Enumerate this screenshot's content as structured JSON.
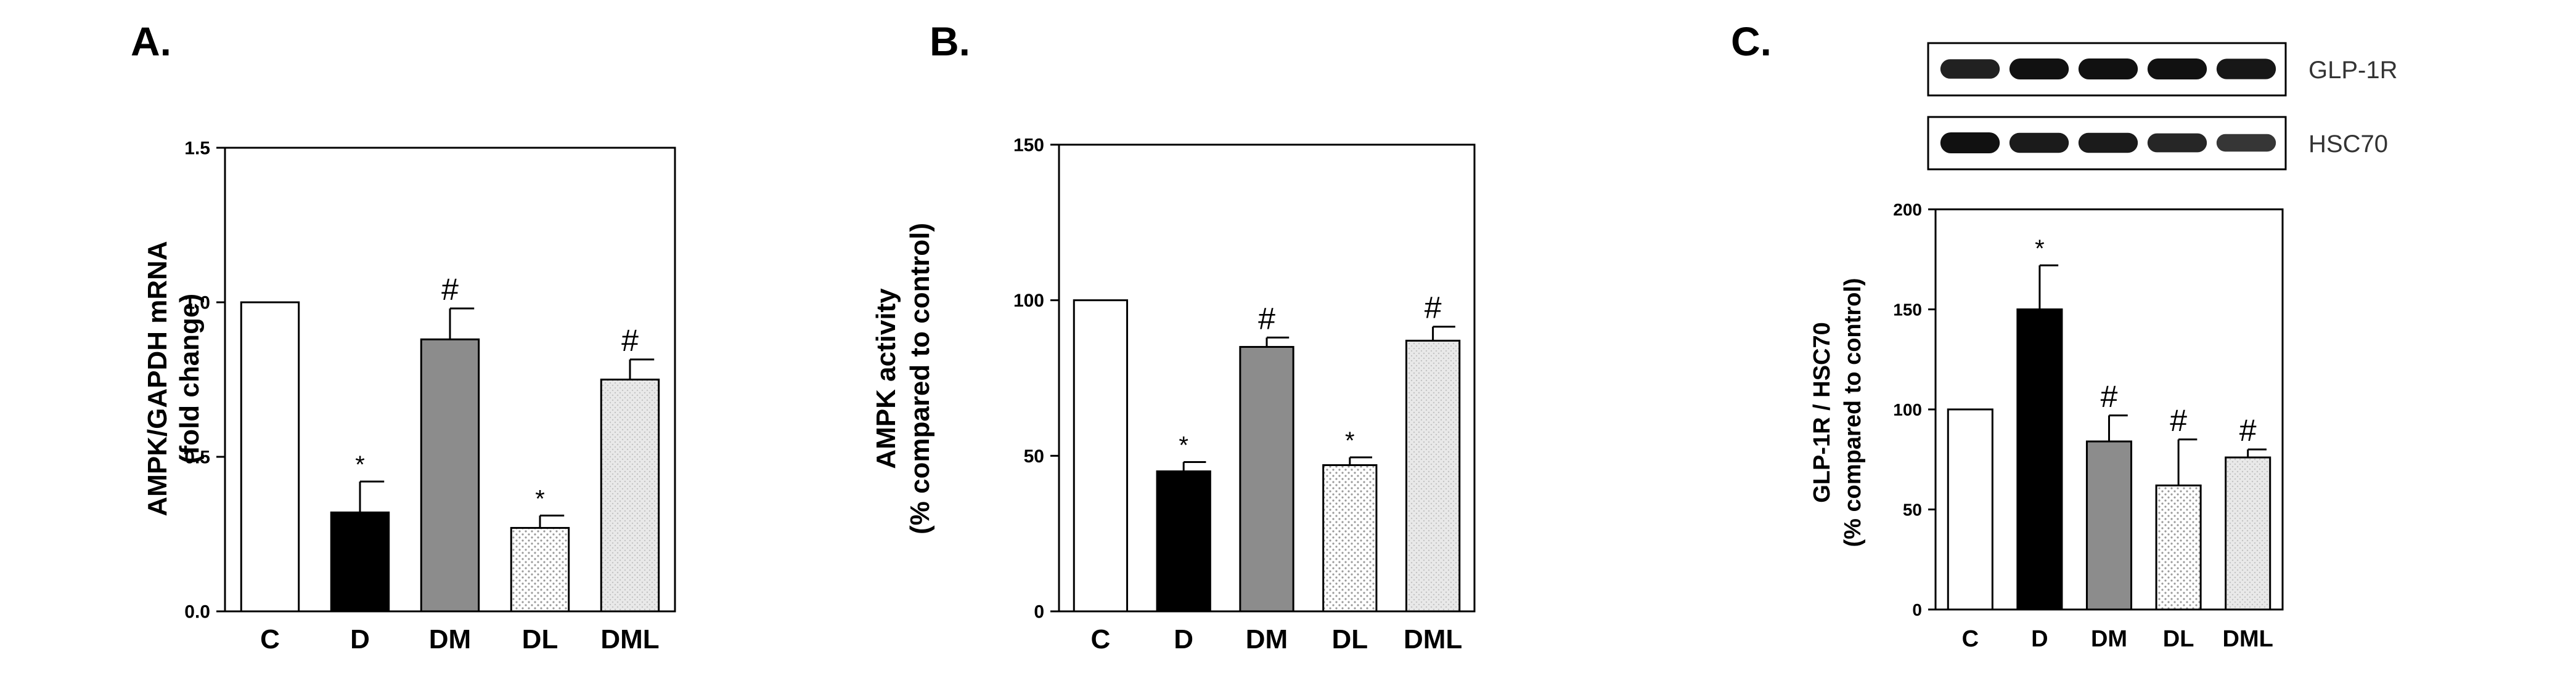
{
  "panels": [
    {
      "letter": "A."
    },
    {
      "letter": "B."
    },
    {
      "letter": "C."
    }
  ],
  "blot": {
    "rows": [
      {
        "label": "GLP-1R",
        "band_intensity": [
          0.85,
          1.0,
          1.0,
          1.0,
          0.95
        ]
      },
      {
        "label": "HSC70",
        "band_intensity": [
          1.0,
          0.9,
          0.9,
          0.8,
          0.65
        ]
      }
    ]
  },
  "chart_data": [
    {
      "type": "bar",
      "title": "",
      "xlabel": "",
      "ylabel": [
        "AMPK/GAPDH mRNA",
        "(fold change)"
      ],
      "categories": [
        "C",
        "D",
        "DM",
        "DL",
        "DML"
      ],
      "values": [
        1.0,
        0.32,
        0.88,
        0.27,
        0.75
      ],
      "errors": [
        0,
        0.1,
        0.1,
        0.04,
        0.065
      ],
      "annotations": [
        "",
        "*",
        "#",
        "*",
        "#"
      ],
      "bar_styles": [
        "white",
        "black",
        "gray",
        "dotted",
        "light-dotted"
      ],
      "ylim": [
        0,
        1.5
      ],
      "yticks": [
        "0.0",
        "0.5",
        "1.0",
        "1.5"
      ],
      "grid": false,
      "legend": "none"
    },
    {
      "type": "bar",
      "title": "",
      "xlabel": "",
      "ylabel": [
        "AMPK activity",
        "(% compared to control)"
      ],
      "categories": [
        "C",
        "D",
        "DM",
        "DL",
        "DML"
      ],
      "values": [
        100,
        45,
        85,
        47,
        87
      ],
      "errors": [
        0,
        3,
        3,
        2.5,
        4.5
      ],
      "annotations": [
        "",
        "*",
        "#",
        "*",
        "#"
      ],
      "bar_styles": [
        "white",
        "black",
        "gray",
        "dotted",
        "light-dotted"
      ],
      "ylim": [
        0,
        150
      ],
      "yticks": [
        "0",
        "50",
        "100",
        "150"
      ],
      "grid": false,
      "legend": "none"
    },
    {
      "type": "bar",
      "title": "",
      "xlabel": "",
      "ylabel": [
        "GLP-1R / HSC70",
        "(% compared to control)"
      ],
      "categories": [
        "C",
        "D",
        "DM",
        "DL",
        "DML"
      ],
      "values": [
        100,
        150,
        84,
        62,
        76
      ],
      "errors": [
        0,
        22,
        13,
        23,
        4
      ],
      "annotations": [
        "",
        "*",
        "#",
        "#",
        "#"
      ],
      "bar_styles": [
        "white",
        "black",
        "gray",
        "dotted",
        "light-dotted"
      ],
      "ylim": [
        0,
        200
      ],
      "yticks": [
        "0",
        "50",
        "100",
        "150",
        "200"
      ],
      "grid": false,
      "legend": "none"
    }
  ],
  "colors": {
    "axis": "#000000",
    "bar_outline": "#000000",
    "bar_white": "#ffffff",
    "bar_black": "#000000",
    "bar_gray": "#8c8c8c",
    "bar_dotted_bg": "#ffffff",
    "bar_dotted_dot": "#9a9a9a",
    "bar_light_bg": "#e9e9e9",
    "bar_light_dot": "#c4c4c4",
    "band": "#111111"
  }
}
